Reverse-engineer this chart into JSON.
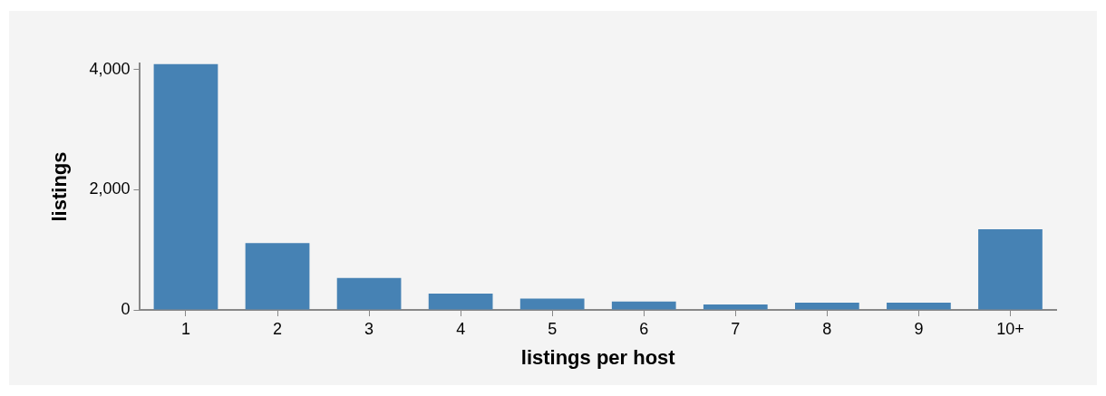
{
  "chart_data": {
    "type": "bar",
    "xlabel": "listings per host",
    "ylabel": "listings",
    "categories": [
      "1",
      "2",
      "3",
      "4",
      "5",
      "6",
      "7",
      "8",
      "9",
      "10+"
    ],
    "values": [
      4090,
      1110,
      530,
      270,
      190,
      140,
      90,
      120,
      120,
      1340
    ],
    "color": "#4682b4",
    "ylim": [
      0,
      4100
    ],
    "yticks": [
      0,
      {
        "value": 2000,
        "label": "2,000"
      },
      {
        "value": 4000,
        "label": "4,000"
      }
    ]
  }
}
